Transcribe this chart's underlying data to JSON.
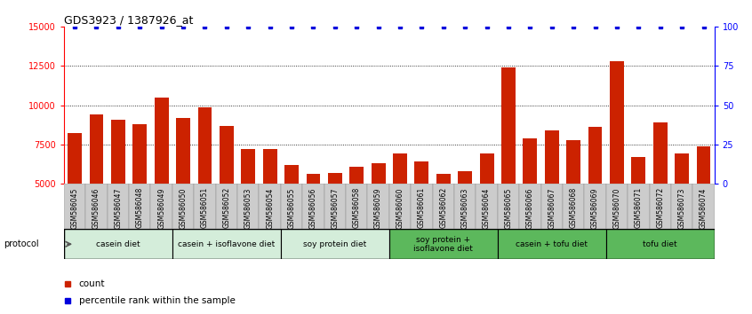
{
  "title": "GDS3923 / 1387926_at",
  "samples": [
    "GSM586045",
    "GSM586046",
    "GSM586047",
    "GSM586048",
    "GSM586049",
    "GSM586050",
    "GSM586051",
    "GSM586052",
    "GSM586053",
    "GSM586054",
    "GSM586055",
    "GSM586056",
    "GSM586057",
    "GSM586058",
    "GSM586059",
    "GSM586060",
    "GSM586061",
    "GSM586062",
    "GSM586063",
    "GSM586064",
    "GSM586065",
    "GSM586066",
    "GSM586067",
    "GSM586068",
    "GSM586069",
    "GSM586070",
    "GSM586071",
    "GSM586072",
    "GSM586073",
    "GSM586074"
  ],
  "counts": [
    8200,
    9400,
    9100,
    8800,
    10500,
    9200,
    9850,
    8700,
    7200,
    7200,
    6200,
    5600,
    5700,
    6100,
    6300,
    6900,
    6400,
    5650,
    5800,
    6900,
    12400,
    7900,
    8400,
    7800,
    8600,
    12800,
    6700,
    8900,
    6900,
    7400
  ],
  "percentile_ranks": [
    100,
    100,
    100,
    100,
    100,
    100,
    100,
    100,
    100,
    100,
    100,
    100,
    100,
    100,
    100,
    100,
    100,
    100,
    100,
    100,
    100,
    100,
    100,
    100,
    100,
    100,
    100,
    100,
    100,
    100
  ],
  "groups": [
    {
      "label": "casein diet",
      "start": 0,
      "end": 4,
      "color": "#d4edda",
      "border_right": true
    },
    {
      "label": "casein + isoflavone diet",
      "start": 5,
      "end": 9,
      "color": "#d4edda",
      "border_right": true
    },
    {
      "label": "soy protein diet",
      "start": 10,
      "end": 14,
      "color": "#d4edda",
      "border_right": true
    },
    {
      "label": "soy protein +\nisoflavone diet",
      "start": 15,
      "end": 19,
      "color": "#5cb85c",
      "border_right": true
    },
    {
      "label": "casein + tofu diet",
      "start": 20,
      "end": 24,
      "color": "#5cb85c",
      "border_right": true
    },
    {
      "label": "tofu diet",
      "start": 25,
      "end": 29,
      "color": "#5cb85c",
      "border_right": false
    }
  ],
  "bar_color": "#CC2200",
  "percentile_color": "#0000DD",
  "ylim_left": [
    5000,
    15000
  ],
  "ylim_right": [
    0,
    100
  ],
  "yticks_left": [
    5000,
    7500,
    10000,
    12500,
    15000
  ],
  "yticks_right": [
    0,
    25,
    50,
    75,
    100
  ],
  "grid_values": [
    7500,
    10000,
    12500
  ],
  "legend_count_label": "count",
  "legend_pct_label": "percentile rank within the sample",
  "tick_cell_color": "#cccccc",
  "tick_cell_color_alt": "#bbbbbb"
}
